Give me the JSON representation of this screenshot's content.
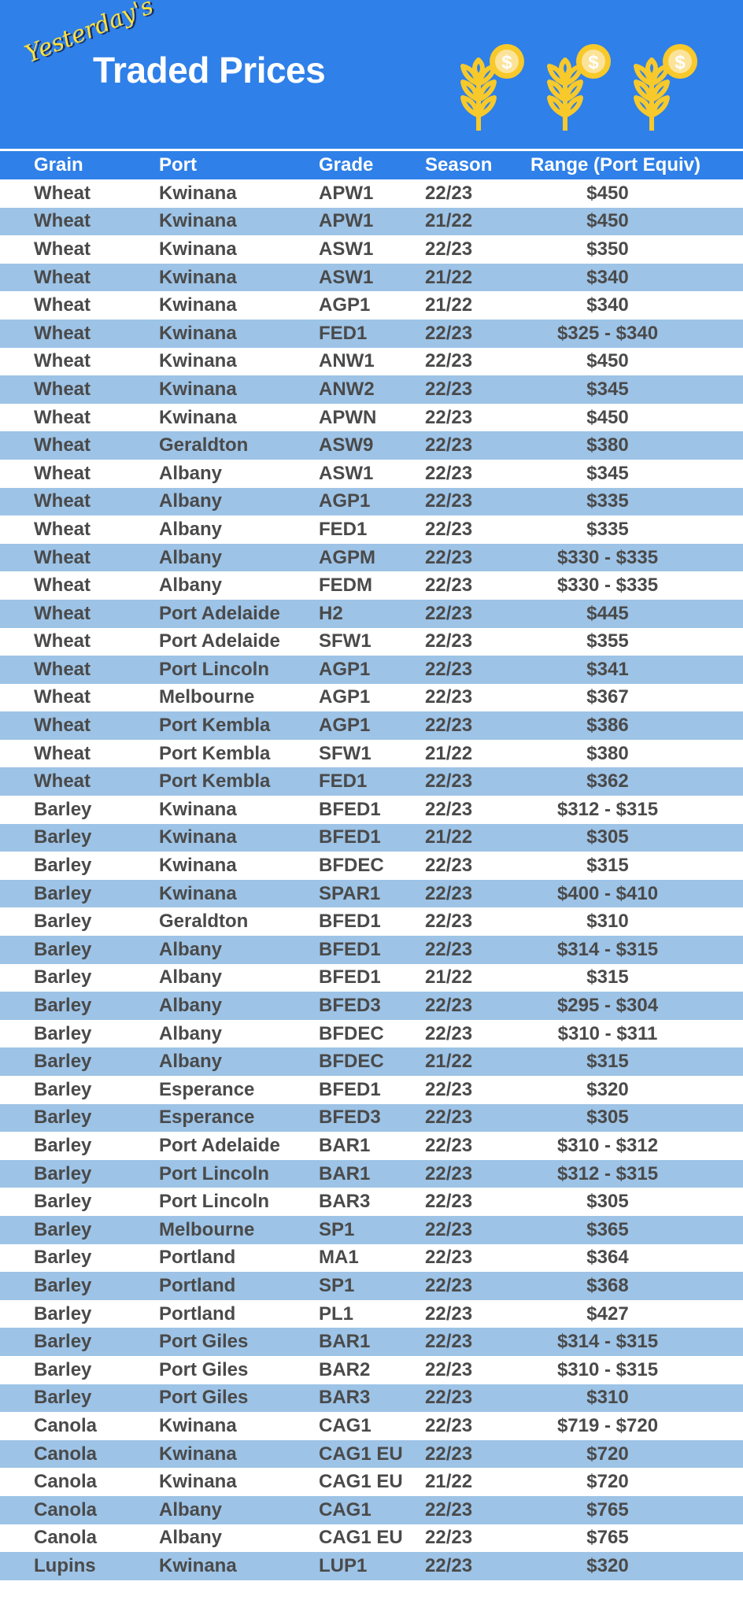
{
  "banner": {
    "subtitle": "Yesterday's",
    "title": "Traded Prices",
    "icon": "wheat-coin-icon",
    "colors": {
      "banner": "#2f80e8",
      "alt_row": "#9dc3e6",
      "icon": "#f8c92a"
    }
  },
  "table": {
    "headers": [
      "Grain",
      "Port",
      "Grade",
      "Season",
      "Range (Port Equiv)"
    ],
    "rows": [
      [
        "Wheat",
        "Kwinana",
        "APW1",
        "22/23",
        "$450"
      ],
      [
        "Wheat",
        "Kwinana",
        "APW1",
        "21/22",
        "$450"
      ],
      [
        "Wheat",
        "Kwinana",
        "ASW1",
        "22/23",
        "$350"
      ],
      [
        "Wheat",
        "Kwinana",
        "ASW1",
        "21/22",
        "$340"
      ],
      [
        "Wheat",
        "Kwinana",
        "AGP1",
        "21/22",
        "$340"
      ],
      [
        "Wheat",
        "Kwinana",
        "FED1",
        "22/23",
        "$325 - $340"
      ],
      [
        "Wheat",
        "Kwinana",
        "ANW1",
        "22/23",
        "$450"
      ],
      [
        "Wheat",
        "Kwinana",
        "ANW2",
        "22/23",
        "$345"
      ],
      [
        "Wheat",
        "Kwinana",
        "APWN",
        "22/23",
        "$450"
      ],
      [
        "Wheat",
        "Geraldton",
        "ASW9",
        "22/23",
        "$380"
      ],
      [
        "Wheat",
        "Albany",
        "ASW1",
        "22/23",
        "$345"
      ],
      [
        "Wheat",
        "Albany",
        "AGP1",
        "22/23",
        "$335"
      ],
      [
        "Wheat",
        "Albany",
        "FED1",
        "22/23",
        "$335"
      ],
      [
        "Wheat",
        "Albany",
        "AGPM",
        "22/23",
        "$330 - $335"
      ],
      [
        "Wheat",
        "Albany",
        "FEDM",
        "22/23",
        "$330 - $335"
      ],
      [
        "Wheat",
        "Port Adelaide",
        "H2",
        "22/23",
        "$445"
      ],
      [
        "Wheat",
        "Port Adelaide",
        "SFW1",
        "22/23",
        "$355"
      ],
      [
        "Wheat",
        "Port Lincoln",
        "AGP1",
        "22/23",
        "$341"
      ],
      [
        "Wheat",
        "Melbourne",
        "AGP1",
        "22/23",
        "$367"
      ],
      [
        "Wheat",
        "Port Kembla",
        "AGP1",
        "22/23",
        "$386"
      ],
      [
        "Wheat",
        "Port Kembla",
        "SFW1",
        "21/22",
        "$380"
      ],
      [
        "Wheat",
        "Port Kembla",
        "FED1",
        "22/23",
        "$362"
      ],
      [
        "Barley",
        "Kwinana",
        "BFED1",
        "22/23",
        "$312 - $315"
      ],
      [
        "Barley",
        "Kwinana",
        "BFED1",
        "21/22",
        "$305"
      ],
      [
        "Barley",
        "Kwinana",
        "BFDEC",
        "22/23",
        "$315"
      ],
      [
        "Barley",
        "Kwinana",
        "SPAR1",
        "22/23",
        "$400 - $410"
      ],
      [
        "Barley",
        "Geraldton",
        "BFED1",
        "22/23",
        "$310"
      ],
      [
        "Barley",
        "Albany",
        "BFED1",
        "22/23",
        "$314 - $315"
      ],
      [
        "Barley",
        "Albany",
        "BFED1",
        "21/22",
        "$315"
      ],
      [
        "Barley",
        "Albany",
        "BFED3",
        "22/23",
        "$295 - $304"
      ],
      [
        "Barley",
        "Albany",
        "BFDEC",
        "22/23",
        "$310 - $311"
      ],
      [
        "Barley",
        "Albany",
        "BFDEC",
        "21/22",
        "$315"
      ],
      [
        "Barley",
        "Esperance",
        "BFED1",
        "22/23",
        "$320"
      ],
      [
        "Barley",
        "Esperance",
        "BFED3",
        "22/23",
        "$305"
      ],
      [
        "Barley",
        "Port Adelaide",
        "BAR1",
        "22/23",
        "$310 - $312"
      ],
      [
        "Barley",
        "Port Lincoln",
        "BAR1",
        "22/23",
        "$312 - $315"
      ],
      [
        "Barley",
        "Port Lincoln",
        "BAR3",
        "22/23",
        "$305"
      ],
      [
        "Barley",
        "Melbourne",
        "SP1",
        "22/23",
        "$365"
      ],
      [
        "Barley",
        "Portland",
        "MA1",
        "22/23",
        "$364"
      ],
      [
        "Barley",
        "Portland",
        "SP1",
        "22/23",
        "$368"
      ],
      [
        "Barley",
        "Portland",
        "PL1",
        "22/23",
        "$427"
      ],
      [
        "Barley",
        "Port Giles",
        "BAR1",
        "22/23",
        "$314 - $315"
      ],
      [
        "Barley",
        "Port Giles",
        "BAR2",
        "22/23",
        "$310 - $315"
      ],
      [
        "Barley",
        "Port Giles",
        "BAR3",
        "22/23",
        "$310"
      ],
      [
        "Canola",
        "Kwinana",
        "CAG1",
        "22/23",
        "$719 - $720"
      ],
      [
        "Canola",
        "Kwinana",
        "CAG1 EU",
        "22/23",
        "$720"
      ],
      [
        "Canola",
        "Kwinana",
        "CAG1 EU",
        "21/22",
        "$720"
      ],
      [
        "Canola",
        "Albany",
        "CAG1",
        "22/23",
        "$765"
      ],
      [
        "Canola",
        "Albany",
        "CAG1 EU",
        "22/23",
        "$765"
      ],
      [
        "Lupins",
        "Kwinana",
        "LUP1",
        "22/23",
        "$320"
      ]
    ]
  }
}
